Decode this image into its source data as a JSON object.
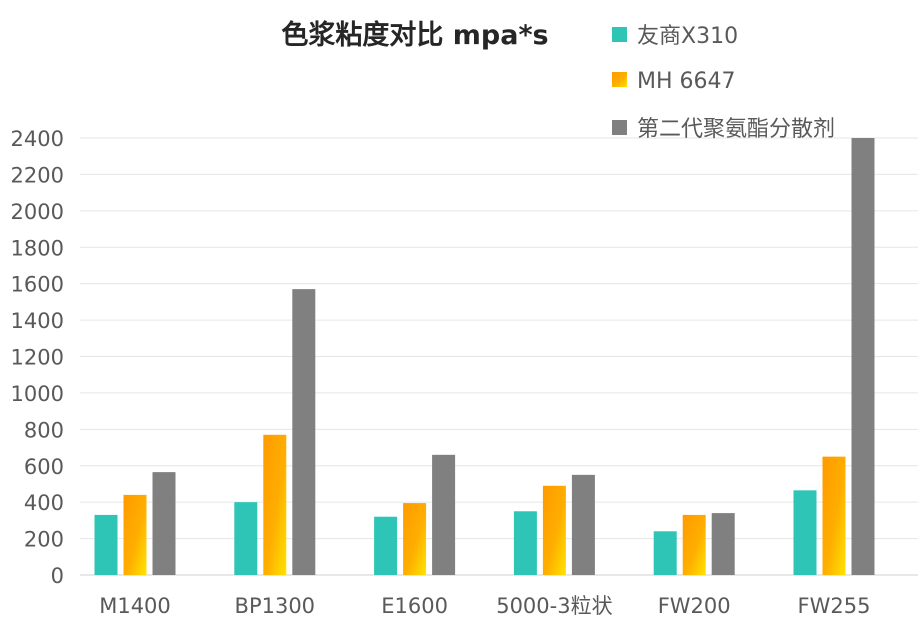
{
  "chart_data": {
    "type": "bar",
    "title": "色浆粘度对比 mpa*s",
    "xlabel": "",
    "ylabel": "",
    "ylim": [
      0,
      2400
    ],
    "yticks": [
      0,
      200,
      400,
      600,
      800,
      1000,
      1200,
      1400,
      1600,
      1800,
      2000,
      2200,
      2400
    ],
    "grid": true,
    "legend_position": "top-right",
    "categories": [
      "M1400",
      "BP1300",
      "E1600",
      "5000-3粒状",
      "FW200",
      "FW255"
    ],
    "series": [
      {
        "name": "友商X310",
        "color": "#2ec4b6",
        "values": [
          330,
          400,
          320,
          350,
          240,
          465
        ]
      },
      {
        "name": "MH 6647",
        "color": "#ff9900",
        "values": [
          440,
          770,
          395,
          490,
          330,
          650
        ]
      },
      {
        "name": "第二代聚氨酯分散剂",
        "color": "#808080",
        "values": [
          565,
          1570,
          660,
          550,
          340,
          2400
        ]
      }
    ]
  }
}
